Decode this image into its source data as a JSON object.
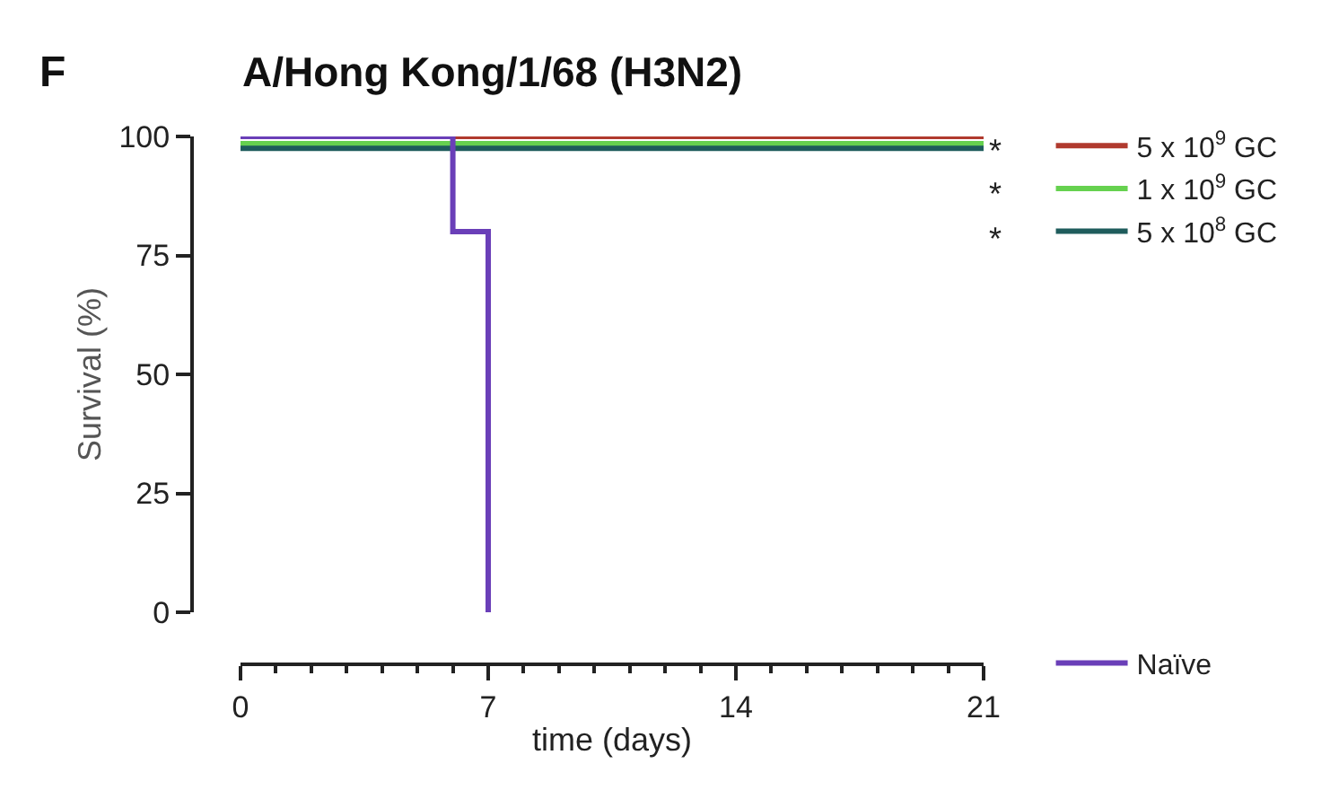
{
  "chart_data": {
    "type": "step",
    "title": "A/Hong Kong/1/68 (H3N2)",
    "xlabel": "time (days)",
    "ylabel": "Survival (%)",
    "xlim": [
      0,
      21
    ],
    "xticks": [
      0,
      7,
      14,
      21
    ],
    "ylim": [
      0,
      100
    ],
    "yticks": [
      0,
      25,
      50,
      75,
      100
    ],
    "series": [
      {
        "name": "5 x 10$^{9}$ GC",
        "color": "#b03a2e",
        "x": [
          0,
          21
        ],
        "values": [
          100,
          100
        ]
      },
      {
        "name": "1 x 10$^{9}$ GC",
        "color": "#66d14f",
        "x": [
          0,
          21
        ],
        "values": [
          98.5,
          98.5
        ]
      },
      {
        "name": "5 x 10$^{8}$ GC",
        "color": "#1f5c5c",
        "x": [
          0,
          21
        ],
        "values": [
          97.5,
          97.5
        ]
      },
      {
        "name": "Naïve",
        "color": "#6a3fb8",
        "x": [
          0,
          6,
          7
        ],
        "values": [
          100,
          80,
          0
        ]
      }
    ],
    "annotations": [
      "F",
      "*",
      "*",
      "*"
    ],
    "legend": "right",
    "marker": "none",
    "line_style": "solid"
  }
}
